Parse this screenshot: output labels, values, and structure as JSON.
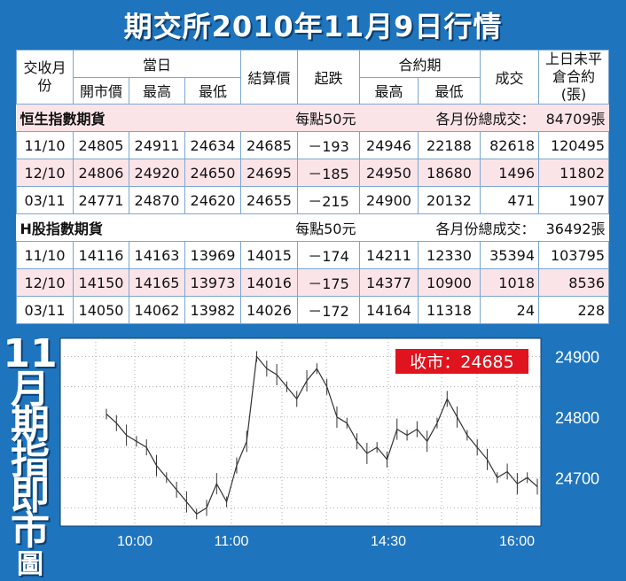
{
  "title": "期交所2010年11月9日行情",
  "table": {
    "headers": {
      "month": "交收月份",
      "day_group": "當日",
      "open": "開市價",
      "high": "最高",
      "low": "最低",
      "settle": "結算價",
      "change": "起跌",
      "contract_group": "合約期",
      "c_high": "最高",
      "c_low": "最低",
      "volume": "成交",
      "oi": "上日未平倉合約(張)"
    },
    "sections": [
      {
        "name": "恒生指數期貨",
        "per_point": "每點50元",
        "total_label": "各月份總成交：",
        "total": "84709張",
        "rows": [
          {
            "month": "11/10",
            "open": "24805",
            "high": "24911",
            "low": "24634",
            "settle": "24685",
            "change": "－193",
            "c_high": "24946",
            "c_low": "22188",
            "volume": "82618",
            "oi": "120495"
          },
          {
            "month": "12/10",
            "open": "24806",
            "high": "24920",
            "low": "24650",
            "settle": "24695",
            "change": "－185",
            "c_high": "24950",
            "c_low": "18680",
            "volume": "1496",
            "oi": "11802"
          },
          {
            "month": "03/11",
            "open": "24771",
            "high": "24870",
            "low": "24620",
            "settle": "24655",
            "change": "－215",
            "c_high": "24900",
            "c_low": "20132",
            "volume": "471",
            "oi": "1907"
          }
        ]
      },
      {
        "name": "H股指數期貨",
        "per_point": "每點50元",
        "total_label": "各月份總成交：",
        "total": "36492張",
        "rows": [
          {
            "month": "11/10",
            "open": "14116",
            "high": "14163",
            "low": "13969",
            "settle": "14015",
            "change": "－174",
            "c_high": "14211",
            "c_low": "12330",
            "volume": "35394",
            "oi": "103795"
          },
          {
            "month": "12/10",
            "open": "14150",
            "high": "14165",
            "low": "13973",
            "settle": "14016",
            "change": "－175",
            "c_high": "14377",
            "c_low": "10900",
            "volume": "1018",
            "oi": "8536"
          },
          {
            "month": "03/11",
            "open": "14050",
            "high": "14062",
            "low": "13982",
            "settle": "14026",
            "change": "－172",
            "c_high": "14164",
            "c_low": "11318",
            "volume": "24",
            "oi": "228"
          }
        ]
      }
    ]
  },
  "chart_title_chars": [
    "11",
    "月",
    "期",
    "指",
    "即",
    "市",
    "圖"
  ],
  "colors": {
    "background": "#1e74bd",
    "pink_row": "#fbe4e8",
    "close_badge": "#e0141e",
    "chart_line": "#333333"
  },
  "chart_data": {
    "type": "line",
    "title": "11月期指即市圖",
    "close_label": "收市：24685",
    "close_value": 24685,
    "ylim": [
      24620,
      24930
    ],
    "yticks": [
      24900,
      24800,
      24700
    ],
    "xticks": [
      "10:00",
      "11:00",
      "14:30",
      "16:00"
    ],
    "grid": true,
    "series": [
      {
        "values": [
          24805,
          24790,
          24770,
          24760,
          24750,
          24720,
          24700,
          24680,
          24660,
          24640,
          24650,
          24690,
          24660,
          24720,
          24760,
          24900,
          24880,
          24870,
          24850,
          24830,
          24860,
          24880,
          24850,
          24800,
          24790,
          24760,
          24740,
          24750,
          24730,
          24780,
          24770,
          24780,
          24760,
          24790,
          24830,
          24800,
          24770,
          24750,
          24730,
          24700,
          24710,
          24690,
          24700,
          24685
        ]
      }
    ]
  }
}
